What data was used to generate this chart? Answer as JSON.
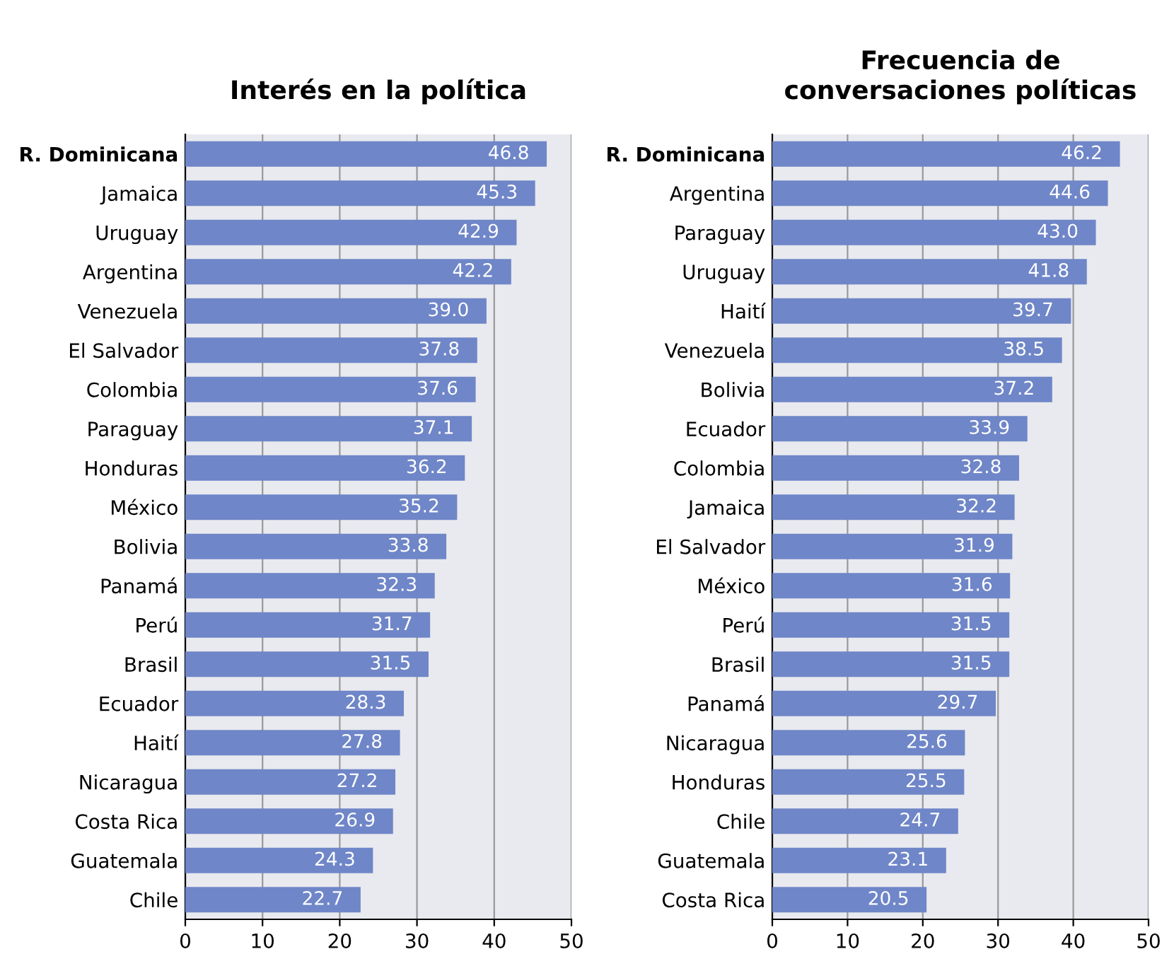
{
  "chart_data": [
    {
      "type": "bar",
      "orientation": "horizontal",
      "title": "Interés en la política",
      "categories": [
        "R. Dominicana",
        "Jamaica",
        "Uruguay",
        "Argentina",
        "Venezuela",
        "El Salvador",
        "Colombia",
        "Paraguay",
        "Honduras",
        "México",
        "Bolivia",
        "Panamá",
        "Perú",
        "Brasil",
        "Ecuador",
        "Haití",
        "Nicaragua",
        "Costa Rica",
        "Guatemala",
        "Chile"
      ],
      "values": [
        46.8,
        45.3,
        42.9,
        42.2,
        39.0,
        37.8,
        37.6,
        37.1,
        36.2,
        35.2,
        33.8,
        32.3,
        31.7,
        31.5,
        28.3,
        27.8,
        27.2,
        26.9,
        24.3,
        22.7
      ],
      "value_labels": [
        "46.8",
        "45.3",
        "42.9",
        "42.2",
        "39.0",
        "37.8",
        "37.6",
        "37.1",
        "36.2",
        "35.2",
        "33.8",
        "32.3",
        "31.7",
        "31.5",
        "28.3",
        "27.8",
        "27.2",
        "26.9",
        "24.3",
        "22.7"
      ],
      "color": "#6f86c8",
      "xlim": [
        0,
        50
      ],
      "xticks": [
        0,
        10,
        20,
        30,
        40,
        50
      ],
      "grid": "x",
      "legend": false
    },
    {
      "type": "bar",
      "orientation": "horizontal",
      "title": "Frecuencia de\nconversaciones políticas",
      "categories": [
        "R. Dominicana",
        "Argentina",
        "Paraguay",
        "Uruguay",
        "Haití",
        "Venezuela",
        "Bolivia",
        "Ecuador",
        "Colombia",
        "Jamaica",
        "El Salvador",
        "México",
        "Perú",
        "Brasil",
        "Panamá",
        "Nicaragua",
        "Honduras",
        "Chile",
        "Guatemala",
        "Costa Rica"
      ],
      "values": [
        46.2,
        44.6,
        43.0,
        41.8,
        39.7,
        38.5,
        37.2,
        33.9,
        32.8,
        32.2,
        31.9,
        31.6,
        31.5,
        31.5,
        29.7,
        25.6,
        25.5,
        24.7,
        23.1,
        20.5
      ],
      "value_labels": [
        "46.2",
        "44.6",
        "43.0",
        "41.8",
        "39.7",
        "38.5",
        "37.2",
        "33.9",
        "32.8",
        "32.2",
        "31.9",
        "31.6",
        "31.5",
        "31.5",
        "29.7",
        "25.6",
        "25.5",
        "24.7",
        "23.1",
        "20.5"
      ],
      "color": "#6f86c8",
      "xlim": [
        0,
        50
      ],
      "xticks": [
        0,
        10,
        20,
        30,
        40,
        50
      ],
      "grid": "x",
      "legend": false
    }
  ]
}
